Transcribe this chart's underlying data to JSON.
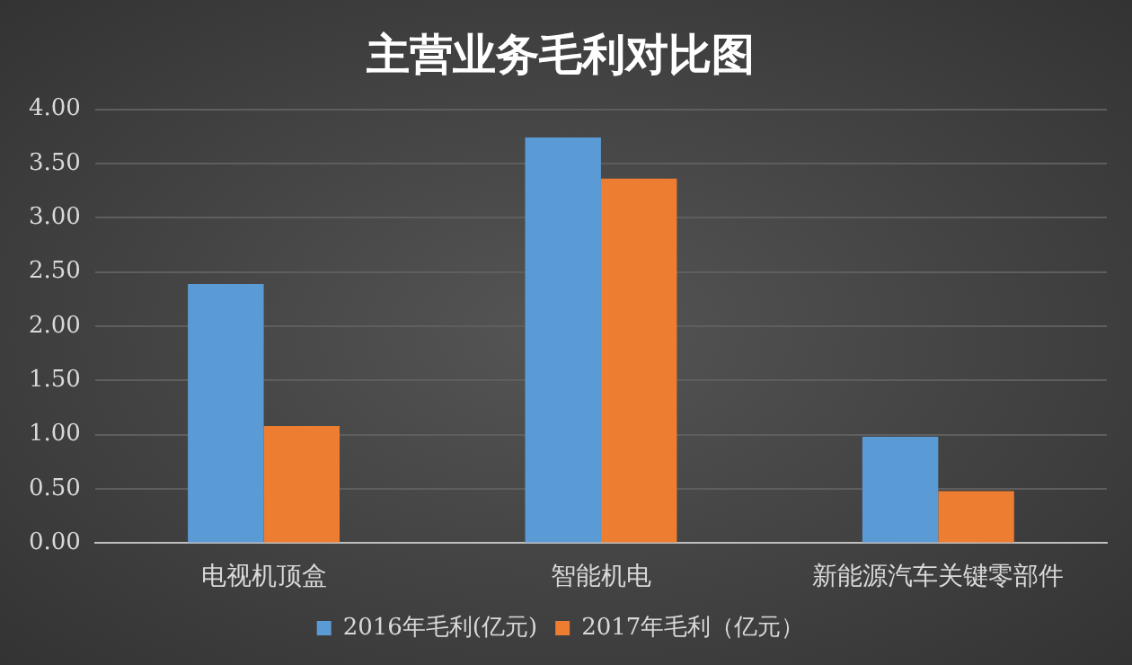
{
  "chart_data": {
    "type": "bar",
    "title": "主营业务毛利对比图",
    "categories": [
      "电视机顶盒",
      "智能机电",
      "新能源汽车关键零部件"
    ],
    "series": [
      {
        "name": "2016年毛利(亿元)",
        "color": "#5b9bd5",
        "values": [
          2.39,
          3.74,
          0.98
        ]
      },
      {
        "name": "2017年毛利（亿元）",
        "color": "#ed7d31",
        "values": [
          1.08,
          3.36,
          0.48
        ]
      }
    ],
    "ylim": [
      0,
      4
    ],
    "yticks": [
      {
        "value": 0,
        "label": "0.00"
      },
      {
        "value": 0.5,
        "label": "0.50"
      },
      {
        "value": 1,
        "label": "1.00"
      },
      {
        "value": 1.5,
        "label": "1.50"
      },
      {
        "value": 2,
        "label": "2.00"
      },
      {
        "value": 2.5,
        "label": "2.50"
      },
      {
        "value": 3,
        "label": "3.00"
      },
      {
        "value": 3.5,
        "label": "3.50"
      },
      {
        "value": 4,
        "label": "4.00"
      }
    ],
    "grid": "y",
    "legend": "bottom"
  }
}
